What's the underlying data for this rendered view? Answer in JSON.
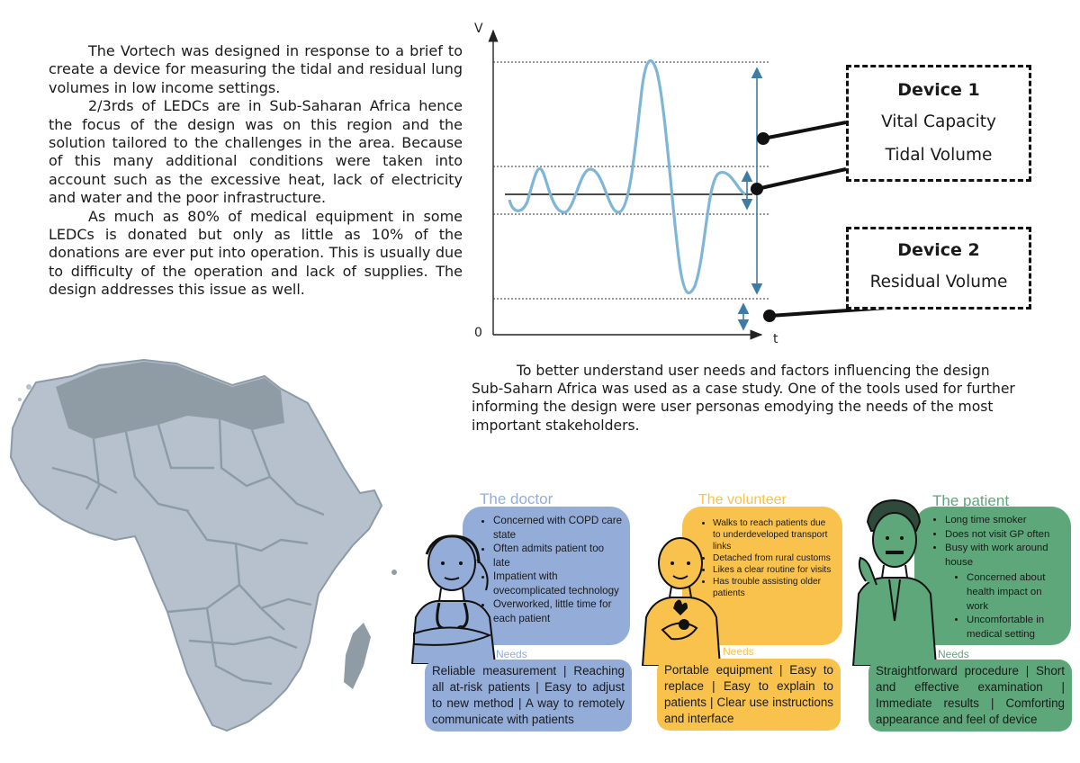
{
  "intro": {
    "p1": "The Vortech was designed in response to a brief to create a device for measuring the tidal and residual lung volumes in low income settings.",
    "p2": "2/3rds of LEDCs are in Sub-Saharan Africa hence the focus of the design was on this region and the solution tailored to the challenges in the area. Because of this many additional conditions were taken into account such as the excessive heat, lack of electricity and water and the poor infrastructure.",
    "p3": "As much as 80% of medical equipment in some LEDCs is donated but only as little as 10% of the donations are ever put into operation. This is usually due to difficulty of the operation and lack of supplies. The design addresses this issue as well."
  },
  "graph": {
    "y_axis_label": "V",
    "x_axis_label": "t",
    "origin_label": "0",
    "wave_color": "#7fb5d6",
    "arrow_color": "#3f7ca5"
  },
  "devices": {
    "device1": {
      "title": "Device 1",
      "items": [
        "Vital Capacity",
        "Tidal Volume"
      ]
    },
    "device2": {
      "title": "Device 2",
      "items": [
        "Residual Volume"
      ]
    }
  },
  "case_study": "To better understand user needs and factors influencing the design Sub-Saharn Africa was used as a case study. One of the tools used for further informing the design were user personas emodying the needs of the most important stakeholders.",
  "map": {
    "fill_color": "#b6c1cd",
    "border_color": "#8c9ba8",
    "highlight_color": "#8f9ca5"
  },
  "personas": [
    {
      "title": "The doctor",
      "color": "#94acd8",
      "traits": [
        "Concerned with COPD care state",
        "Often admits patient too late",
        "Impatient with ovecomplicated technology",
        "Overworked, little time for each patient"
      ],
      "needs_label": "Needs",
      "needs": "Reliable measurement | Reaching all at-risk patients | Easy to adjust to new method | A way to remotely communicate with patients"
    },
    {
      "title": "The volunteer",
      "color": "#f8c24d",
      "traits": [
        "Walks to reach patients due to underdeveloped transport links",
        "Detached from rural customs",
        "Likes a clear routine for visits",
        "Has trouble assisting older patients"
      ],
      "needs_label": "Needs",
      "needs": "Portable equipment | Easy to replace | Easy to explain to patients | Clear use instructions and interface"
    },
    {
      "title": "The patient",
      "color": "#5ea77b",
      "traits": [
        "Long time smoker",
        "Does not visit GP often",
        "Busy with work around house",
        "Concerned about health impact on work",
        "Uncomfortable in medical setting"
      ],
      "needs_label": "Needs",
      "needs": "Straightforward procedure | Short and effective examination | Immediate results | Comforting appearance and feel of device"
    }
  ]
}
